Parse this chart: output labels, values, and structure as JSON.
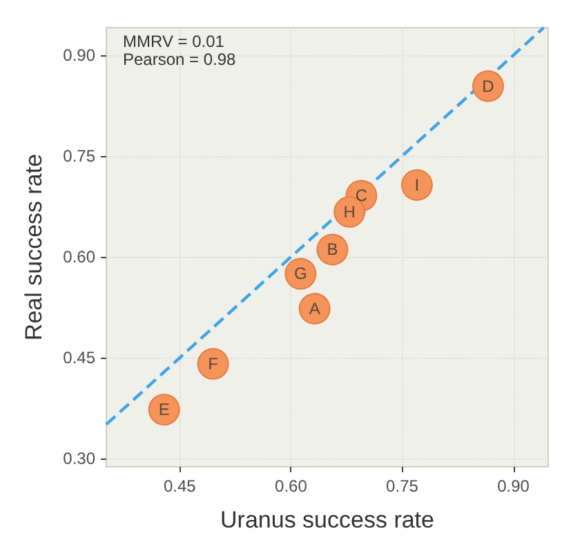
{
  "chart_data": {
    "type": "scatter",
    "xlabel": "Uranus success rate",
    "ylabel": "Real success rate",
    "xlim": [
      0.351,
      0.947
    ],
    "ylim": [
      0.288,
      0.941
    ],
    "xticks": [
      {
        "value": 0.45,
        "label": "0.45"
      },
      {
        "value": 0.6,
        "label": "0.60"
      },
      {
        "value": 0.75,
        "label": "0.75"
      },
      {
        "value": 0.9,
        "label": "0.90"
      }
    ],
    "yticks": [
      {
        "value": 0.3,
        "label": "0.30"
      },
      {
        "value": 0.45,
        "label": "0.45"
      },
      {
        "value": 0.6,
        "label": "0.60"
      },
      {
        "value": 0.75,
        "label": "0.75"
      },
      {
        "value": 0.9,
        "label": "0.90"
      }
    ],
    "grid": true,
    "marker": "circle",
    "series": [
      {
        "type": "line",
        "color": "#3fa4e8",
        "line_style": "dashed",
        "marker": "none",
        "x": [
          0.351,
          0.941
        ],
        "values": [
          0.351,
          0.941
        ]
      },
      {
        "type": "scatter",
        "color": "#f4935a",
        "x": [
          0.632,
          0.656,
          0.695,
          0.866,
          0.429,
          0.495,
          0.613,
          0.679,
          0.77
        ],
        "values": [
          0.523,
          0.611,
          0.691,
          0.854,
          0.373,
          0.441,
          0.575,
          0.667,
          0.707
        ]
      }
    ],
    "annotations": [
      "MMRV = 0.01",
      "Pearson = 0.98",
      {
        "text": "A",
        "x": 0.632,
        "y": 0.523
      },
      {
        "text": "B",
        "x": 0.656,
        "y": 0.611
      },
      {
        "text": "C",
        "x": 0.695,
        "y": 0.691
      },
      {
        "text": "D",
        "x": 0.866,
        "y": 0.854
      },
      {
        "text": "E",
        "x": 0.429,
        "y": 0.373
      },
      {
        "text": "F",
        "x": 0.495,
        "y": 0.441
      },
      {
        "text": "G",
        "x": 0.613,
        "y": 0.575
      },
      {
        "text": "H",
        "x": 0.679,
        "y": 0.667
      },
      {
        "text": "I",
        "x": 0.77,
        "y": 0.707
      }
    ]
  }
}
